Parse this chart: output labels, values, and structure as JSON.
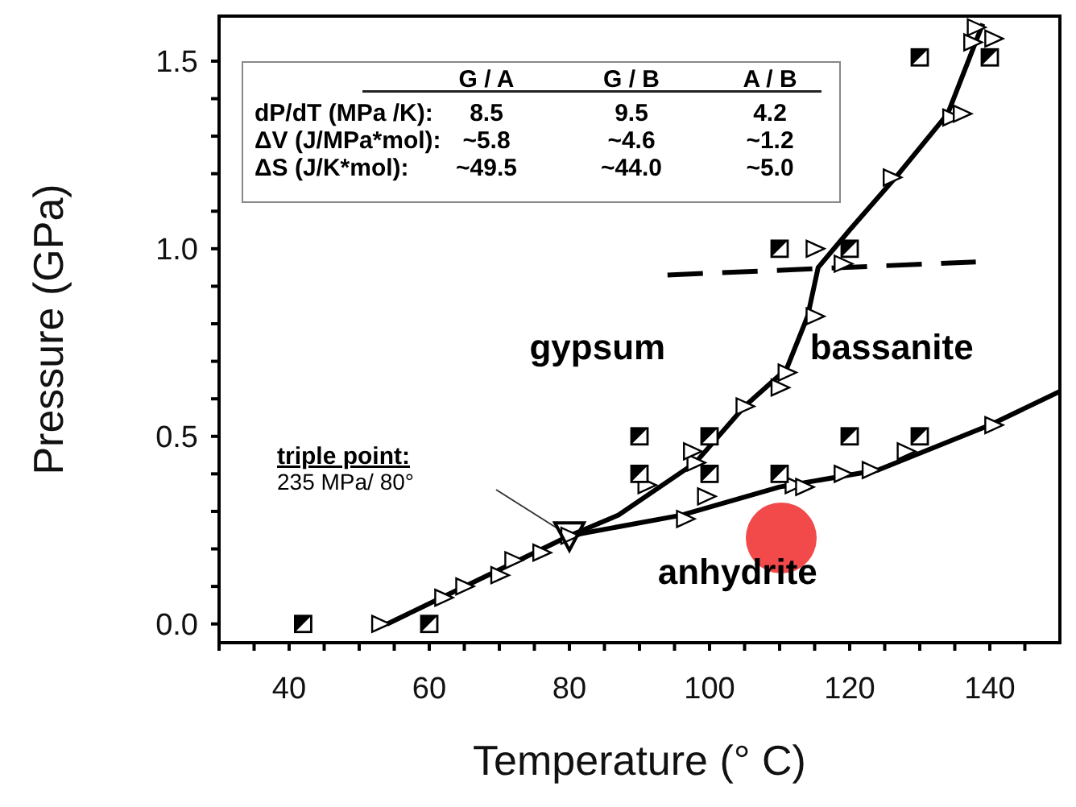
{
  "chart_data": {
    "type": "scatter",
    "xlabel": "Temperature (° C)",
    "ylabel": "Pressure (GPa)",
    "xlim": [
      30,
      150
    ],
    "ylim": [
      -0.05,
      1.62
    ],
    "xticks": [
      {
        "value": 30,
        "label": null
      },
      {
        "value": 35,
        "label": null
      },
      40,
      {
        "value": 45,
        "label": null
      },
      {
        "value": 50,
        "label": null
      },
      {
        "value": 55,
        "label": null
      },
      60,
      {
        "value": 65,
        "label": null
      },
      {
        "value": 70,
        "label": null
      },
      {
        "value": 75,
        "label": null
      },
      80,
      {
        "value": 85,
        "label": null
      },
      {
        "value": 90,
        "label": null
      },
      {
        "value": 95,
        "label": null
      },
      100,
      {
        "value": 105,
        "label": null
      },
      {
        "value": 110,
        "label": null
      },
      {
        "value": 115,
        "label": null
      },
      120,
      {
        "value": 125,
        "label": null
      },
      {
        "value": 130,
        "label": null
      },
      {
        "value": 135,
        "label": null
      },
      140,
      {
        "value": 145,
        "label": null
      }
    ],
    "yticks": [
      {
        "value": 0,
        "label": "0.0"
      },
      {
        "value": 0.1,
        "label": null
      },
      {
        "value": 0.2,
        "label": null
      },
      {
        "value": 0.3,
        "label": null
      },
      {
        "value": 0.4,
        "label": null
      },
      0.5,
      {
        "value": 0.6,
        "label": null
      },
      {
        "value": 0.7,
        "label": null
      },
      {
        "value": 0.8,
        "label": null
      },
      {
        "value": 0.9,
        "label": null
      },
      {
        "value": 1,
        "label": "1.0"
      },
      {
        "value": 1.1,
        "label": null
      },
      {
        "value": 1.2,
        "label": null
      },
      {
        "value": 1.3,
        "label": null
      },
      {
        "value": 1.4,
        "label": null
      },
      1.5
    ],
    "grid": false,
    "series": [
      {
        "type": "line",
        "color": "#000000",
        "line_style": "solid",
        "x": [
          54,
          80
        ],
        "values": [
          0,
          0.235
        ]
      },
      {
        "type": "line",
        "color": "#000000",
        "line_style": "solid",
        "x": [
          80,
          87,
          98,
          105,
          111,
          114,
          115.5,
          120,
          127,
          134,
          139
        ],
        "values": [
          0.235,
          0.29,
          0.43,
          0.58,
          0.68,
          0.82,
          0.95,
          1.05,
          1.2,
          1.36,
          1.6
        ]
      },
      {
        "type": "line",
        "color": "#000000",
        "line_style": "solid",
        "x": [
          80,
          96,
          110,
          124,
          140,
          150
        ],
        "values": [
          0.235,
          0.29,
          0.365,
          0.41,
          0.53,
          0.62
        ]
      },
      {
        "type": "line",
        "color": "#000000",
        "line_style": "dashed",
        "x": [
          94,
          138
        ],
        "values": [
          0.93,
          0.965
        ]
      },
      {
        "type": "scatter",
        "color": "#000000",
        "marker": "triangle",
        "x": [
          53,
          62,
          65,
          70,
          72,
          76,
          80,
          91,
          98,
          97.5,
          105,
          110,
          111,
          115,
          115,
          119,
          126,
          134.5,
          136,
          137.5,
          138,
          140.5,
          96.5,
          99.5,
          112,
          113.5,
          119,
          123,
          128,
          140.5
        ],
        "values": [
          0,
          0.07,
          0.1,
          0.13,
          0.17,
          0.19,
          0.235,
          0.37,
          0.43,
          0.46,
          0.58,
          0.63,
          0.67,
          0.82,
          1.0,
          0.96,
          1.19,
          1.35,
          1.36,
          1.55,
          1.59,
          1.56,
          0.28,
          0.34,
          0.37,
          0.365,
          0.4,
          0.41,
          0.46,
          0.53
        ]
      },
      {
        "type": "scatter",
        "color": "#000000",
        "marker": "square",
        "x": [
          42,
          60,
          90,
          90,
          100,
          100,
          110,
          110,
          120,
          120,
          130,
          130,
          140
        ],
        "values": [
          0,
          0,
          0.4,
          0.5,
          0.4,
          0.5,
          0.4,
          1.0,
          0.5,
          1.0,
          0.5,
          1.51,
          1.51
        ]
      }
    ],
    "annotations": [
      "G / A",
      "G / B",
      "A / B",
      "dP/dT  (MPa /K):",
      "8.5",
      "9.5",
      "4.2",
      "ΔV  (J/MPa*mol):",
      "~5.8",
      "~4.6",
      "~1.2",
      "ΔS  (J/K*mol):",
      "~49.5",
      "~44.0",
      "~5.0",
      "gypsum",
      "bassanite",
      "anhydrite",
      "triple point:",
      "235 MPa/ 80°"
    ]
  }
}
